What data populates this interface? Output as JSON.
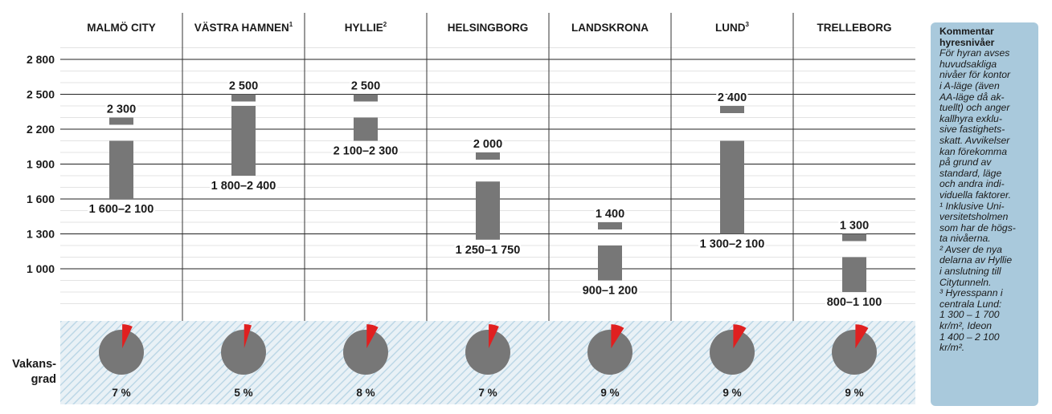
{
  "chart_data": {
    "type": "bar",
    "y_tick_labels": [
      "2 800",
      "2 500",
      "2 200",
      "1 900",
      "1 600",
      "1 300",
      "1 000"
    ],
    "y_ticks": [
      2800,
      2500,
      2200,
      1900,
      1600,
      1300,
      1000
    ],
    "categories": [
      {
        "label": "MALMÖ CITY",
        "sup": "",
        "range": [
          1600,
          2100
        ],
        "range_label": "1 600–2 100",
        "top": 2300,
        "top_label": "2 300",
        "vacancy": 7,
        "vacancy_label": "7 %"
      },
      {
        "label": "VÄSTRA HAMNEN",
        "sup": "1",
        "range": [
          1800,
          2400
        ],
        "range_label": "1 800–2 400",
        "top": 2500,
        "top_label": "2 500",
        "vacancy": 5,
        "vacancy_label": "5 %"
      },
      {
        "label": "HYLLIE",
        "sup": "2",
        "range": [
          2100,
          2300
        ],
        "range_label": "2 100–2 300",
        "top": 2500,
        "top_label": "2 500",
        "vacancy": 8,
        "vacancy_label": "8 %"
      },
      {
        "label": "HELSINGBORG",
        "sup": "",
        "range": [
          1250,
          1750
        ],
        "range_label": "1 250–1 750",
        "top": 2000,
        "top_label": "2 000",
        "vacancy": 7,
        "vacancy_label": "7 %"
      },
      {
        "label": "LANDSKRONA",
        "sup": "",
        "range": [
          900,
          1200
        ],
        "range_label": "900–1 200",
        "top": 1400,
        "top_label": "1 400",
        "vacancy": 9,
        "vacancy_label": "9 %"
      },
      {
        "label": "LUND",
        "sup": "3",
        "range": [
          1300,
          2100
        ],
        "range_label": "1 300–2 100",
        "top": 2400,
        "top_label": "2 400",
        "vacancy": 9,
        "vacancy_label": "9 %"
      },
      {
        "label": "TRELLEBORG",
        "sup": "",
        "range": [
          800,
          1100
        ],
        "range_label": "800–1 100",
        "top": 1300,
        "top_label": "1 300",
        "vacancy": 9,
        "vacancy_label": "9 %"
      }
    ],
    "vacancy_label_lines": [
      "Vakans-",
      "grad"
    ],
    "colors": {
      "bar": "#777777",
      "pie_rest": "#777777",
      "pie_vacancy": "#e02020",
      "grid": "#222222",
      "hatch": "#bcd7e6"
    }
  },
  "sidebar": {
    "title_line1": "Kommentar",
    "title_line2": "hyresnivåer",
    "text_lines": [
      "För hyran avses",
      "huvudsakliga",
      "nivåer för kontor",
      "i A-läge (även",
      "AA-läge då ak-",
      "tuellt) och anger",
      "kallhyra exklu-",
      "sive fastighets-",
      "skatt. Avvikelser",
      "kan förekomma",
      "på grund av",
      "standard, läge",
      "och andra indi-",
      "viduella faktorer."
    ],
    "note1_lines": [
      "¹ Inklusive Uni-",
      "versitetsholmen",
      "som har de högs-",
      "ta nivåerna."
    ],
    "note2_lines": [
      "² Avser de nya",
      "delarna av Hyllie",
      "i anslutning till",
      "Citytunneln."
    ],
    "note3_lines": [
      "³ Hyresspann i",
      "centrala Lund:",
      "1 300 – 1 700",
      "kr/m², Ideon",
      "1 400 – 2 100",
      "kr/m²."
    ]
  }
}
